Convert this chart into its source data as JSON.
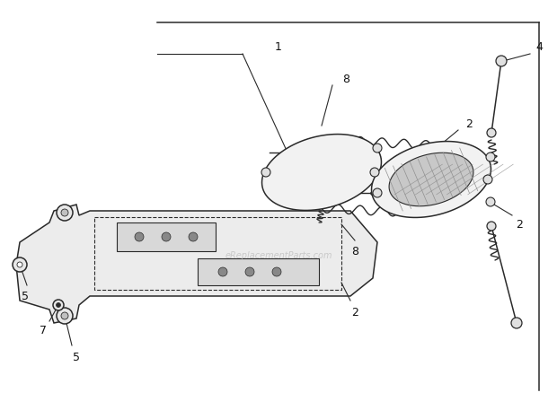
{
  "bg_color": "#ffffff",
  "line_color": "#2a2a2a",
  "watermark": "eReplacementParts.com",
  "watermark_color": "#bbbbbb",
  "label_fontsize": 9,
  "figsize": [
    6.2,
    4.57
  ],
  "dpi": 100
}
